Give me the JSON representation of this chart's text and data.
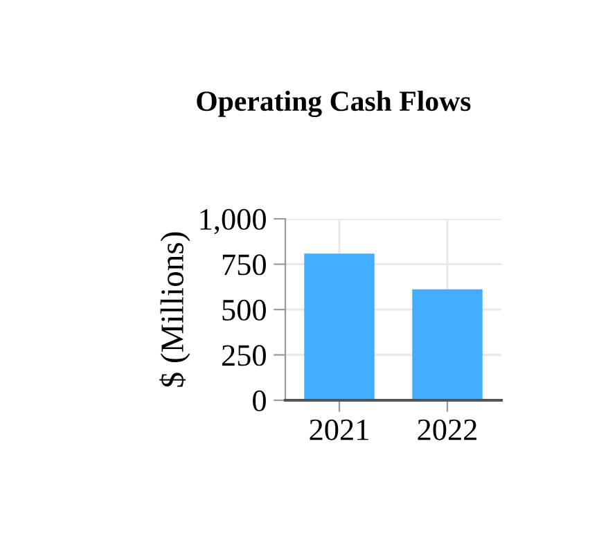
{
  "chart_data": {
    "type": "bar",
    "title": "Operating Cash Flows",
    "ylabel": "$ (Millions)",
    "categories": [
      "2021",
      "2022"
    ],
    "values": [
      808,
      612
    ],
    "color": "#42adff",
    "ylim": [
      0,
      1000
    ],
    "yticks": [
      0,
      250,
      500,
      750,
      {
        "value": 1000,
        "label": "1,000"
      }
    ],
    "grid": true
  }
}
